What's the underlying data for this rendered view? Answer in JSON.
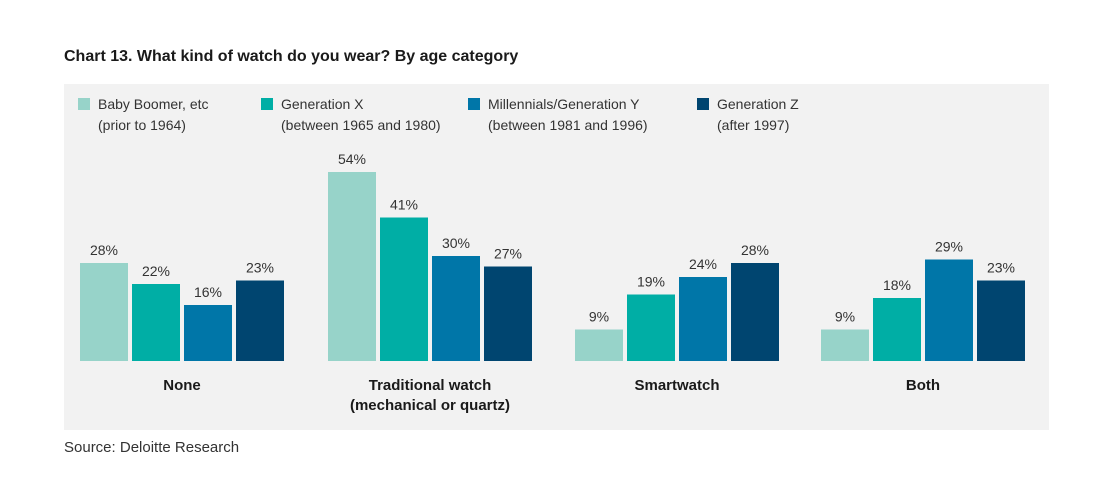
{
  "title": "Chart 13. What kind of watch do you wear? By age category",
  "source": "Source: Deloitte Research",
  "colors": [
    "#97d3c9",
    "#00aea5",
    "#0076a8",
    "#004570"
  ],
  "chart_data": {
    "type": "bar",
    "title": "Chart 13. What kind of watch do you wear? By age category",
    "categories": [
      [
        "None"
      ],
      [
        "Traditional watch",
        "(mechanical or quartz)"
      ],
      [
        "Smartwatch"
      ],
      [
        "Both"
      ]
    ],
    "series": [
      {
        "name": [
          "Baby Boomer, etc",
          "(prior to 1964)"
        ],
        "values": [
          28,
          54,
          9,
          9
        ]
      },
      {
        "name": [
          "Generation X",
          "(between 1965 and 1980)"
        ],
        "values": [
          22,
          41,
          19,
          18
        ]
      },
      {
        "name": [
          "Millennials/Generation Y",
          "(between 1981 and 1996)"
        ],
        "values": [
          16,
          30,
          24,
          29
        ]
      },
      {
        "name": [
          "Generation Z",
          "(after 1997)"
        ],
        "values": [
          23,
          27,
          28,
          23
        ]
      }
    ],
    "value_suffix": "%",
    "xlabel": "",
    "ylabel": "",
    "ylim": [
      0,
      54
    ],
    "grid": false,
    "legend": "top"
  }
}
